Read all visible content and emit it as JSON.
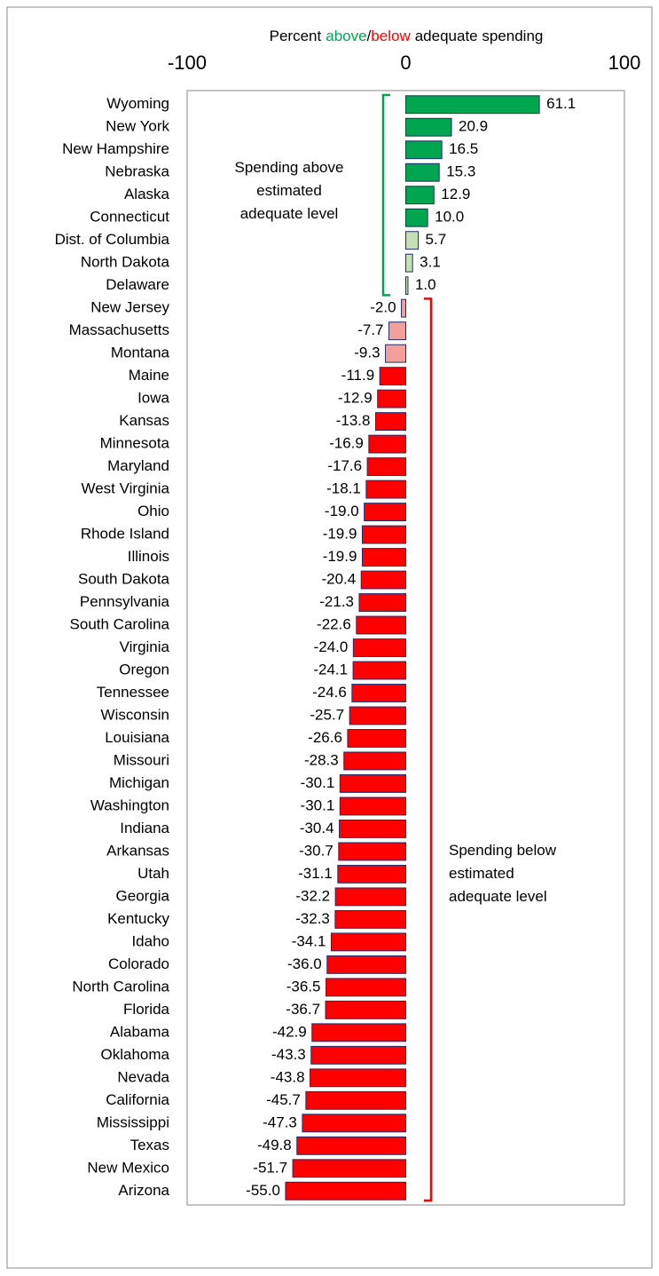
{
  "chart_data": {
    "type": "barh",
    "title_parts": [
      {
        "text": "Percent",
        "color": "#000000"
      },
      {
        "text": "above",
        "color": "#00a550"
      },
      {
        "text": "/",
        "color": "#000000"
      },
      {
        "text": "below",
        "color": "#ff0000"
      },
      {
        "text": "adequate spending",
        "color": "#000000"
      }
    ],
    "categories": [
      "Wyoming",
      "New York",
      "New Hampshire",
      "Nebraska",
      "Alaska",
      "Connecticut",
      "Dist. of Columbia",
      "North Dakota",
      "Delaware",
      "New Jersey",
      "Massachusetts",
      "Montana",
      "Maine",
      "Iowa",
      "Kansas",
      "Minnesota",
      "Maryland",
      "West Virginia",
      "Ohio",
      "Rhode Island",
      "Illinois",
      "South Dakota",
      "Pennsylvania",
      "South Carolina",
      "Virginia",
      "Oregon",
      "Tennessee",
      "Wisconsin",
      "Louisiana",
      "Missouri",
      "Michigan",
      "Washington",
      "Indiana",
      "Arkansas",
      "Utah",
      "Georgia",
      "Kentucky",
      "Idaho",
      "Colorado",
      "North Carolina",
      "Florida",
      "Alabama",
      "Oklahoma",
      "Nevada",
      "California",
      "Mississippi",
      "Texas",
      "New Mexico",
      "Arizona"
    ],
    "values": [
      61.1,
      20.9,
      16.5,
      15.3,
      12.9,
      10.0,
      5.7,
      3.1,
      1.0,
      -2.0,
      -7.7,
      -9.3,
      -11.9,
      -12.9,
      -13.8,
      -16.9,
      -17.6,
      -18.1,
      -19.0,
      -19.9,
      -19.9,
      -20.4,
      -21.3,
      -22.6,
      -24.0,
      -24.1,
      -24.6,
      -25.7,
      -26.6,
      -28.3,
      -30.1,
      -30.1,
      -30.4,
      -30.7,
      -31.1,
      -32.2,
      -32.3,
      -34.1,
      -36.0,
      -36.5,
      -36.7,
      -42.9,
      -43.3,
      -43.8,
      -45.7,
      -47.3,
      -49.8,
      -51.7,
      -55.0
    ],
    "value_labels": [
      "61.1",
      "20.9",
      "16.5",
      "15.3",
      "12.9",
      "10.0",
      "5.7",
      "3.1",
      "1.0",
      "-2.0",
      "-7.7",
      "-9.3",
      "-11.9",
      "-12.9",
      "-13.8",
      "-16.9",
      "-17.6",
      "-18.1",
      "-19.0",
      "-19.9",
      "-19.9",
      "-20.4",
      "-21.3",
      "-22.6",
      "-24.0",
      "-24.1",
      "-24.6",
      "-25.7",
      "-26.6",
      "-28.3",
      "-30.1",
      "-30.1",
      "-30.4",
      "-30.7",
      "-31.1",
      "-32.2",
      "-32.3",
      "-34.1",
      "-36.0",
      "-36.5",
      "-36.7",
      "-42.9",
      "-43.3",
      "-43.8",
      "-45.7",
      "-47.3",
      "-49.8",
      "-51.7",
      "-55.0"
    ],
    "colors": [
      "#00a550",
      "#00a550",
      "#00a550",
      "#00a550",
      "#00a550",
      "#00a550",
      "#c5e0b4",
      "#c5e0b4",
      "#c5e0b4",
      "#f4a09a",
      "#f4a09a",
      "#f4a09a",
      "#ff0000",
      "#ff0000",
      "#ff0000",
      "#ff0000",
      "#ff0000",
      "#ff0000",
      "#ff0000",
      "#ff0000",
      "#ff0000",
      "#ff0000",
      "#ff0000",
      "#ff0000",
      "#ff0000",
      "#ff0000",
      "#ff0000",
      "#ff0000",
      "#ff0000",
      "#ff0000",
      "#ff0000",
      "#ff0000",
      "#ff0000",
      "#ff0000",
      "#ff0000",
      "#ff0000",
      "#ff0000",
      "#ff0000",
      "#ff0000",
      "#ff0000",
      "#ff0000",
      "#ff0000",
      "#ff0000",
      "#ff0000",
      "#ff0000",
      "#ff0000",
      "#ff0000",
      "#ff0000",
      "#ff0000"
    ],
    "bar_edge_color": "#1f2d6b",
    "xlim": [
      -100,
      100
    ],
    "xticks": [
      -100,
      0,
      100
    ],
    "annotations": [
      {
        "lines": [
          "Spending above",
          "estimated",
          "adequate level"
        ],
        "color": "#00a550"
      },
      {
        "lines": [
          "Spending below",
          "estimated",
          "adequate level"
        ],
        "color": "#ff0000"
      }
    ]
  }
}
